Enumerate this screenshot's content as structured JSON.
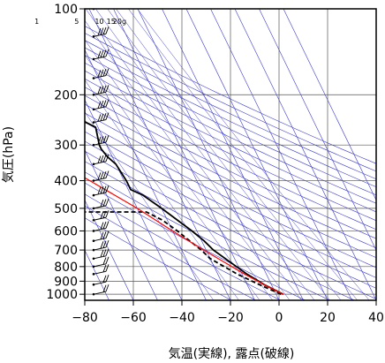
{
  "chart_data": {
    "type": "line",
    "title": "",
    "xlabel": "気温(実線), 露点(破線)",
    "ylabel": "気圧(hPa)",
    "xlim": [
      -80,
      40
    ],
    "ylim_pressure": [
      1050,
      100
    ],
    "y_scale": "log-pressure",
    "grid": true,
    "x_ticks": [
      -80,
      -60,
      -40,
      -20,
      0,
      20,
      40
    ],
    "y_ticks": [
      100,
      200,
      300,
      400,
      500,
      600,
      700,
      800,
      900,
      1000
    ],
    "mixing_ratio_labels": [
      {
        "value": 1,
        "text": "1"
      },
      {
        "value": 5,
        "text": "5"
      },
      {
        "value": 10,
        "text": "10"
      },
      {
        "value": 15,
        "text": "15"
      },
      {
        "value": 20,
        "text": "20g"
      }
    ],
    "series": [
      {
        "role": "temperature",
        "style": "solid",
        "color": "#000000",
        "points": [
          {
            "p": 1000,
            "t": 3
          },
          {
            "p": 925,
            "t": -3
          },
          {
            "p": 850,
            "t": -8
          },
          {
            "p": 780,
            "t": -12
          },
          {
            "p": 700,
            "t": -17
          },
          {
            "p": 650,
            "t": -19
          },
          {
            "p": 600,
            "t": -22
          },
          {
            "p": 500,
            "t": -30
          },
          {
            "p": 450,
            "t": -35
          },
          {
            "p": 430,
            "t": -39
          },
          {
            "p": 400,
            "t": -39
          },
          {
            "p": 350,
            "t": -40
          },
          {
            "p": 330,
            "t": -42
          },
          {
            "p": 310,
            "t": -43
          },
          {
            "p": 300,
            "t": -43
          },
          {
            "p": 260,
            "t": -41
          },
          {
            "p": 250,
            "t": -44
          },
          {
            "p": 220,
            "t": -48
          },
          {
            "p": 200,
            "t": -50
          },
          {
            "p": 150,
            "t": -55
          },
          {
            "p": 120,
            "t": -58
          },
          {
            "p": 110,
            "t": -61
          },
          {
            "p": 100,
            "t": -63
          }
        ]
      },
      {
        "role": "dewpoint",
        "style": "dashed",
        "color": "#000000",
        "points": [
          {
            "p": 1000,
            "t": 2
          },
          {
            "p": 925,
            "t": -5
          },
          {
            "p": 850,
            "t": -12
          },
          {
            "p": 750,
            "t": -20
          },
          {
            "p": 700,
            "t": -22
          },
          {
            "p": 600,
            "t": -28
          },
          {
            "p": 550,
            "t": -32
          },
          {
            "p": 515,
            "t": -37
          },
          {
            "p": 515,
            "t": -76
          }
        ]
      },
      {
        "role": "parcel-path",
        "style": "solid",
        "color": "#ff0000",
        "points": [
          {
            "p": 1000,
            "t": 3
          },
          {
            "p": 925,
            "t": -3
          },
          {
            "p": 850,
            "t": -9
          },
          {
            "p": 700,
            "t": -21
          },
          {
            "p": 600,
            "t": -30
          },
          {
            "p": 500,
            "t": -40
          },
          {
            "p": 400,
            "t": -54
          },
          {
            "p": 300,
            "t": -73
          },
          {
            "p": 260,
            "t": -82
          }
        ]
      }
    ],
    "wind_levels_hpa": [
      1000,
      925,
      850,
      800,
      750,
      700,
      650,
      600,
      550,
      500,
      450,
      400,
      350,
      300,
      250,
      225,
      200,
      175,
      150,
      125,
      100
    ],
    "colors": {
      "background_lines": "#3c3ccc",
      "grid": "#555555",
      "frame": "#000000",
      "parcel": "#ff0000"
    }
  }
}
